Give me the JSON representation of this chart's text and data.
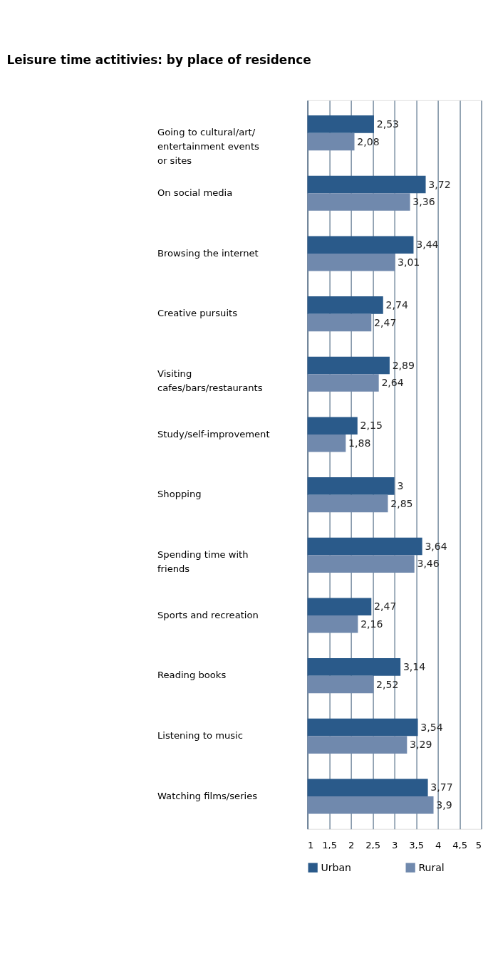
{
  "chart_data": {
    "type": "bar",
    "orientation": "horizontal",
    "title": "Leisure time actitivies: by place of residence",
    "categories": [
      "Going to cultural/art/entertainment events or sites",
      "On social media",
      "Browsing the internet",
      "Creative pursuits",
      "Visiting cafes/bars/restaurants",
      "Study/self-improvement",
      "Shopping",
      "Spending time with friends",
      "Sports and recreation",
      "Reading books",
      "Listening to music",
      "Watching films/series"
    ],
    "series": [
      {
        "name": "Urban",
        "color": "#2a5a8a",
        "values": [
          2.53,
          3.72,
          3.44,
          2.74,
          2.89,
          2.15,
          3,
          3.64,
          2.47,
          3.14,
          3.54,
          3.77
        ],
        "value_labels": [
          "2,53",
          "3,72",
          "3,44",
          "2,74",
          "2,89",
          "2,15",
          "3",
          "3,64",
          "2,47",
          "3,14",
          "3,54",
          "3,77"
        ]
      },
      {
        "name": "Rural",
        "color": "#7089ad",
        "values": [
          2.08,
          3.36,
          3.01,
          2.47,
          2.64,
          1.88,
          2.85,
          3.46,
          2.16,
          2.52,
          3.29,
          3.9
        ],
        "value_labels": [
          "2,08",
          "3,36",
          "3,01",
          "2,47",
          "2,64",
          "1,88",
          "2,85",
          "3,46",
          "2,16",
          "2,52",
          "3,29",
          "3,9"
        ]
      }
    ],
    "xlim": [
      1,
      5
    ],
    "xticks": [
      1,
      {
        "value": 1.5,
        "label": "1,5"
      },
      2,
      {
        "value": 2.5,
        "label": "2,5"
      },
      3,
      {
        "value": 3.5,
        "label": "3,5"
      },
      4,
      {
        "value": 4.5,
        "label": "4,5"
      },
      5
    ],
    "grid": "x",
    "legend": "bottom"
  }
}
